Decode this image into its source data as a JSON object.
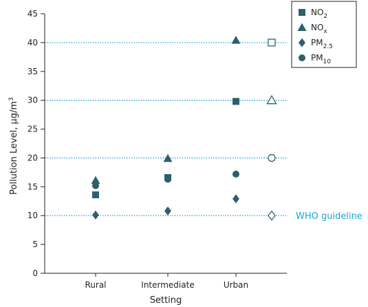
{
  "chart_data": {
    "type": "scatter",
    "xlabel": "Setting",
    "ylabel": "Pollution Level, μg/m",
    "ylabel_sup": "3",
    "categories": [
      "Rural",
      "Intermediate",
      "Urban"
    ],
    "ylim": [
      0,
      45
    ],
    "yticks": [
      0,
      5,
      10,
      15,
      20,
      25,
      30,
      35,
      40,
      45
    ],
    "grid": false,
    "legend_position": "top-right",
    "series": [
      {
        "name": "NO",
        "sub": "2",
        "marker": "square",
        "values": [
          13.6,
          16.6,
          29.8
        ],
        "guideline": 40
      },
      {
        "name": "NO",
        "sub": "x",
        "marker": "triangle",
        "values": [
          16.1,
          19.9,
          40.4
        ],
        "guideline": 30
      },
      {
        "name": "PM",
        "sub": "2.5",
        "marker": "diamond",
        "values": [
          10.1,
          10.8,
          12.9
        ],
        "guideline": 10
      },
      {
        "name": "PM",
        "sub": "10",
        "marker": "circle",
        "values": [
          15.2,
          16.3,
          17.2
        ],
        "guideline": 20
      }
    ],
    "guideline_label": "WHO guideline",
    "colors": {
      "marker": "#2f5f6b",
      "guideline": "#1aa6d6",
      "axis": "#222222"
    }
  }
}
